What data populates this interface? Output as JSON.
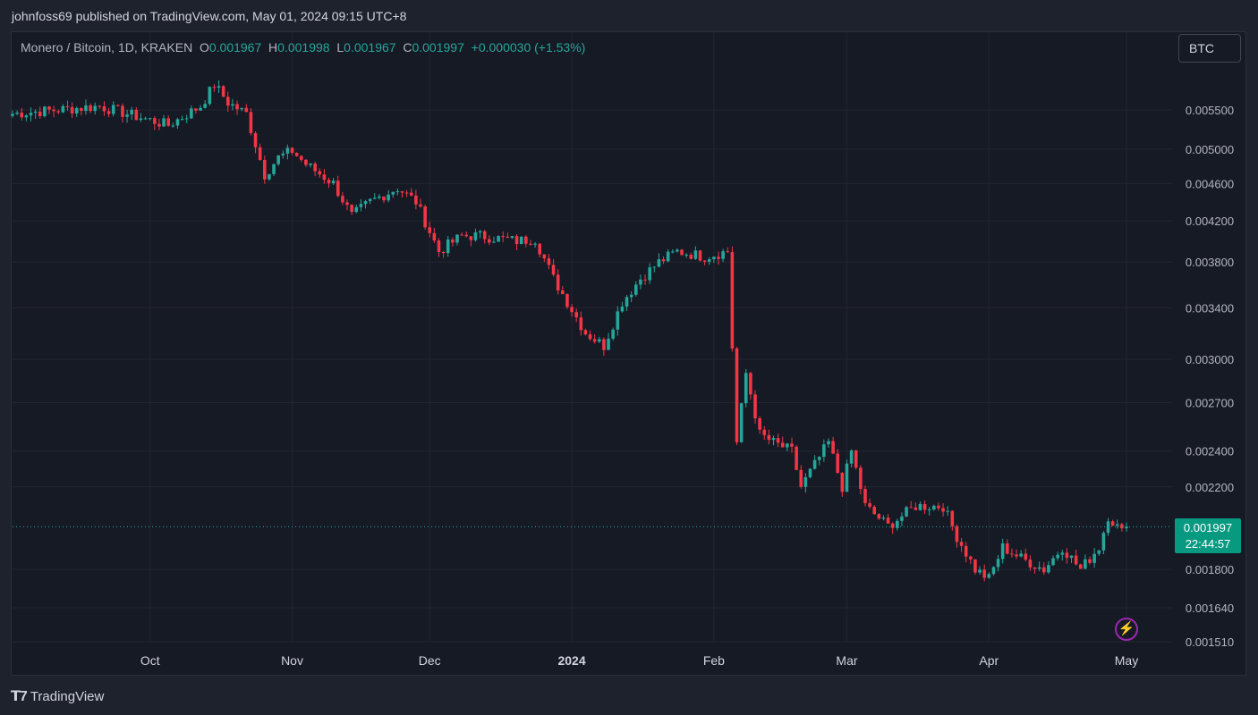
{
  "header": {
    "published_text": "johnfoss69 published on TradingView.com, May 01, 2024 09:15 UTC+8"
  },
  "legend": {
    "symbol": "Monero / Bitcoin, 1D, KRAKEN",
    "o_label": "O",
    "o_value": "0.001967",
    "h_label": "H",
    "h_value": "0.001998",
    "l_label": "L",
    "l_value": "0.001967",
    "c_label": "C",
    "c_value": "0.001997",
    "change": "+0.000030 (+1.53%)"
  },
  "currency_button": "BTC",
  "price_tag": {
    "price": "0.001997",
    "countdown": "22:44:57"
  },
  "brand": {
    "logo_icon": "tradingview-logo-icon",
    "name": "TradingView"
  },
  "colors": {
    "up": "#26a69a",
    "down": "#f23645",
    "background": "#161a25",
    "grid": "#232632",
    "alert": "#9c27b0"
  },
  "chart_data": {
    "type": "candlestick",
    "symbol": "XMR/BTC",
    "timeframe": "1D",
    "exchange": "KRAKEN",
    "scale": "log",
    "y_ticks": [
      "0.005500",
      "0.005000",
      "0.004600",
      "0.004200",
      "0.003800",
      "0.003400",
      "0.003000",
      "0.002700",
      "0.002400",
      "0.002200",
      "0.001800",
      "0.001640",
      "0.001510"
    ],
    "x_ticks": [
      "Oct",
      "Nov",
      "Dec",
      "2024",
      "Feb",
      "Mar",
      "Apr",
      "May"
    ],
    "ylim": [
      0.00151,
      0.0062
    ],
    "last_price": 0.001997,
    "anchor_closes": [
      [
        "2023-09-01",
        0.00545
      ],
      [
        "2023-09-20",
        0.00555
      ],
      [
        "2023-10-05",
        0.0053
      ],
      [
        "2023-10-12",
        0.00555
      ],
      [
        "2023-10-15",
        0.00585
      ],
      [
        "2023-10-18",
        0.0056
      ],
      [
        "2023-10-22",
        0.00545
      ],
      [
        "2023-10-26",
        0.0047
      ],
      [
        "2023-10-29",
        0.0049
      ],
      [
        "2023-11-01",
        0.00498
      ],
      [
        "2023-11-04",
        0.00482
      ],
      [
        "2023-11-10",
        0.0046
      ],
      [
        "2023-11-14",
        0.00425
      ],
      [
        "2023-11-18",
        0.0044
      ],
      [
        "2023-11-24",
        0.00455
      ],
      [
        "2023-11-28",
        0.0044
      ],
      [
        "2023-12-03",
        0.0039
      ],
      [
        "2023-12-08",
        0.00405
      ],
      [
        "2023-12-12",
        0.00405
      ],
      [
        "2023-12-20",
        0.004
      ],
      [
        "2023-12-24",
        0.00402
      ],
      [
        "2023-12-28",
        0.00365
      ],
      [
        "2024-01-04",
        0.0032
      ],
      [
        "2024-01-08",
        0.0031
      ],
      [
        "2024-01-12",
        0.00345
      ],
      [
        "2024-01-16",
        0.00365
      ],
      [
        "2024-01-20",
        0.0038
      ],
      [
        "2024-01-24",
        0.0039
      ],
      [
        "2024-01-30",
        0.00385
      ],
      [
        "2024-02-04",
        0.0039
      ],
      [
        "2024-02-06",
        0.00245
      ],
      [
        "2024-02-08",
        0.0029
      ],
      [
        "2024-02-11",
        0.0025
      ],
      [
        "2024-02-14",
        0.00245
      ],
      [
        "2024-02-18",
        0.0024
      ],
      [
        "2024-02-20",
        0.0022
      ],
      [
        "2024-02-26",
        0.00245
      ],
      [
        "2024-02-29",
        0.0022
      ],
      [
        "2024-03-02",
        0.0024
      ],
      [
        "2024-03-05",
        0.0021
      ],
      [
        "2024-03-10",
        0.002
      ],
      [
        "2024-03-16",
        0.0021
      ],
      [
        "2024-03-22",
        0.0021
      ],
      [
        "2024-03-25",
        0.00195
      ],
      [
        "2024-03-29",
        0.0018
      ],
      [
        "2024-04-01",
        0.00176
      ],
      [
        "2024-04-04",
        0.0019
      ],
      [
        "2024-04-08",
        0.00185
      ],
      [
        "2024-04-13",
        0.0018
      ],
      [
        "2024-04-17",
        0.0019
      ],
      [
        "2024-04-21",
        0.0018
      ],
      [
        "2024-04-25",
        0.0019
      ],
      [
        "2024-04-27",
        0.00205
      ],
      [
        "2024-04-30",
        0.00197
      ],
      [
        "2024-05-01",
        0.001997
      ]
    ]
  }
}
